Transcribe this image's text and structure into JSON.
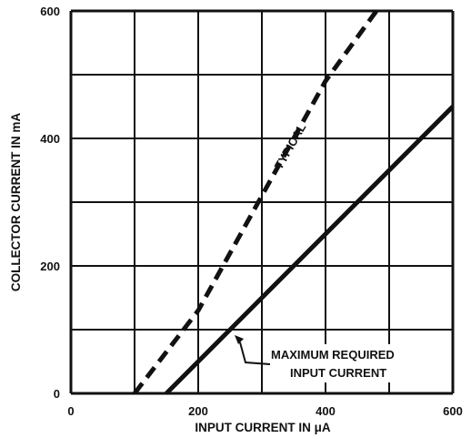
{
  "chart_data": {
    "type": "line",
    "title": "",
    "xlabel": "INPUT CURRENT IN μA",
    "ylabel": "COLLECTOR CURRENT IN mA",
    "xlim": [
      0,
      600
    ],
    "ylim": [
      0,
      600
    ],
    "x_ticks": [
      "0",
      "200",
      "400",
      "600"
    ],
    "y_ticks": [
      "0",
      "200",
      "400",
      "600"
    ],
    "grid": true,
    "series": [
      {
        "name": "TYPICAL",
        "style": "dashed",
        "x": [
          100,
          200,
          300,
          400,
          480
        ],
        "y": [
          0,
          130,
          310,
          490,
          600
        ]
      },
      {
        "name": "MAXIMUM REQUIRED INPUT CURRENT",
        "style": "solid",
        "x": [
          150,
          200,
          300,
          400,
          500,
          600
        ],
        "y": [
          0,
          50,
          150,
          250,
          350,
          450
        ]
      }
    ],
    "annotations": [
      {
        "text": "TYPICAL",
        "series": 0
      },
      {
        "text": [
          "MAXIMUM REQUIRED",
          "INPUT CURRENT"
        ],
        "series": 1
      }
    ],
    "colors": {
      "line": "#111111",
      "grid": "#111111",
      "background": "#ffffff"
    }
  }
}
